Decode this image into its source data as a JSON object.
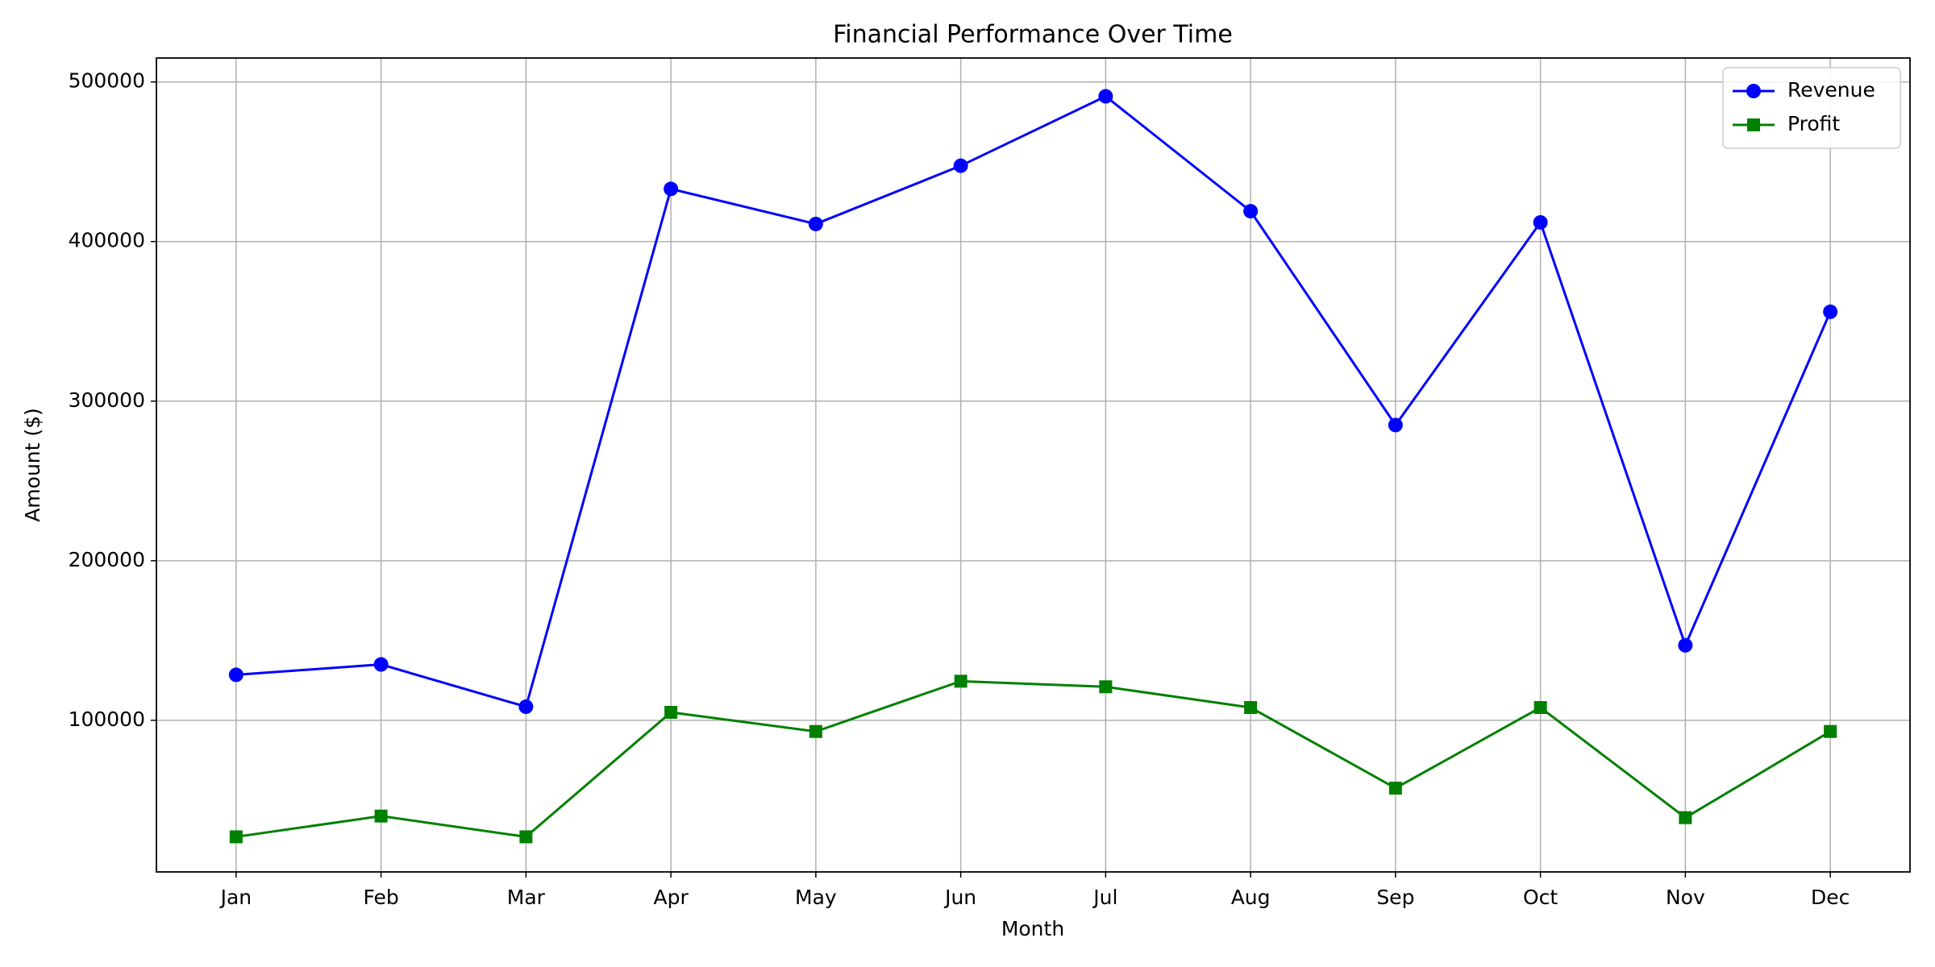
{
  "chart_data": {
    "type": "line",
    "title": "Financial Performance Over Time",
    "x_label": "Month",
    "y_label": "Amount ($)",
    "categories": [
      "Jan",
      "Feb",
      "Mar",
      "Apr",
      "May",
      "Jun",
      "Jul",
      "Aug",
      "Sep",
      "Oct",
      "Nov",
      "Dec"
    ],
    "series": [
      {
        "name": "Revenue",
        "color": "#0000ff",
        "marker": "circle",
        "values": [
          128500,
          135000,
          108500,
          433000,
          411000,
          447500,
          491000,
          419000,
          285000,
          412000,
          147000,
          356000
        ]
      },
      {
        "name": "Profit",
        "color": "#008000",
        "marker": "square",
        "values": [
          27000,
          40000,
          27000,
          105000,
          93000,
          124500,
          121000,
          108000,
          57500,
          108000,
          39000,
          93000
        ]
      }
    ],
    "ylim": [
      5000,
      515000
    ],
    "yticks": [
      100000,
      200000,
      300000,
      400000,
      500000
    ],
    "grid": true,
    "legend": "upper right"
  }
}
